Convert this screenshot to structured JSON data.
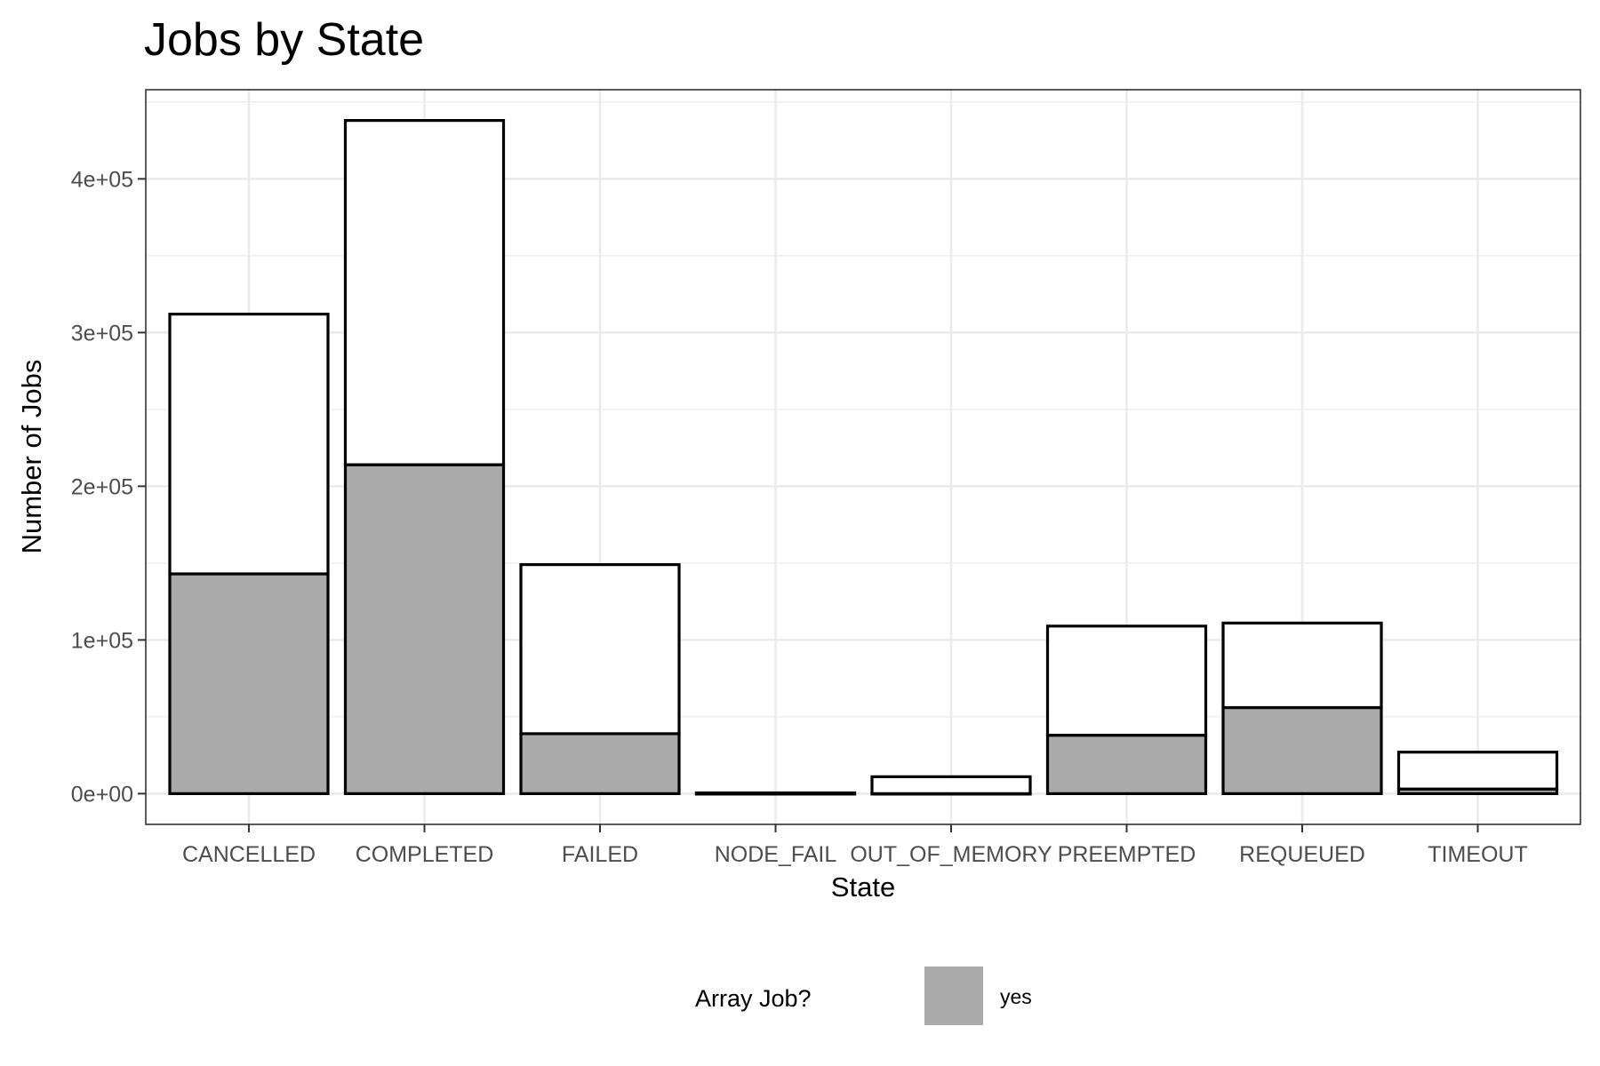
{
  "chart_data": {
    "type": "bar",
    "stacked": true,
    "title": "Jobs by State",
    "xlabel": "State",
    "ylabel": "Number of Jobs",
    "categories": [
      "CANCELLED",
      "COMPLETED",
      "FAILED",
      "NODE_FAIL",
      "OUT_OF_MEMORY",
      "PREEMPTED",
      "REQUEUED",
      "TIMEOUT"
    ],
    "series": [
      {
        "name": "yes",
        "color": "#aaaaaa",
        "values": [
          143000,
          214000,
          39000,
          0,
          0,
          38000,
          56000,
          3000
        ]
      },
      {
        "name": "",
        "color": "#ffffff",
        "values": [
          169000,
          224000,
          110000,
          500,
          11000,
          71000,
          55000,
          24000
        ]
      }
    ],
    "ylim": [
      -20000,
      458000
    ],
    "yticks": [
      0,
      100000,
      200000,
      300000,
      400000
    ],
    "ytick_labels": [
      "0e+00",
      "1e+05",
      "2e+05",
      "3e+05",
      "4e+05"
    ],
    "grid": true,
    "legend": {
      "title": "Array Job?",
      "position": "bottom",
      "entries": [
        "yes"
      ]
    }
  }
}
